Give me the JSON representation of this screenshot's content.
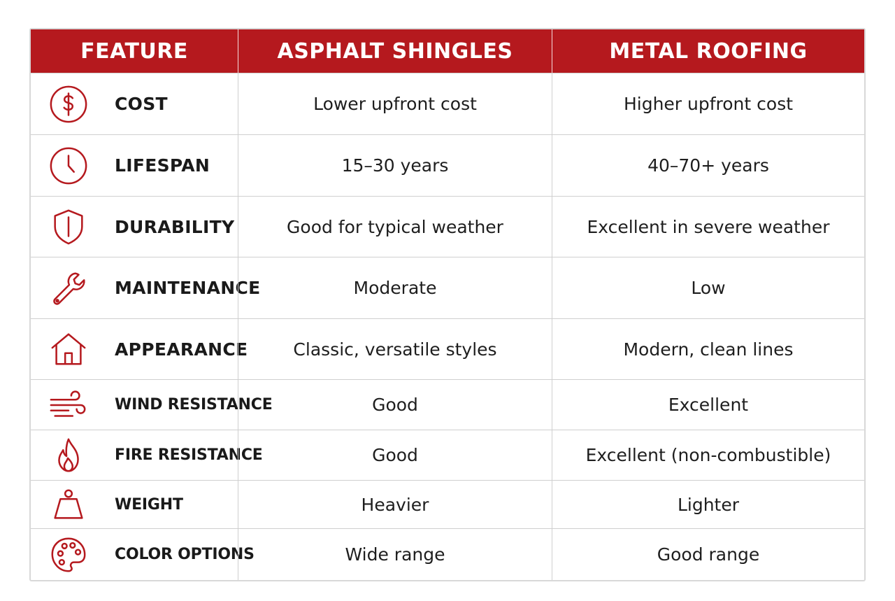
{
  "header": {
    "feature": "FEATURE",
    "asphalt": "ASPHALT SHINGLES",
    "metal": "METAL ROOFING"
  },
  "rows": [
    {
      "feature": "COST",
      "icon": "dollar-icon",
      "asphalt": "Lower upfront cost",
      "metal": "Higher upfront cost"
    },
    {
      "feature": "LIFESPAN",
      "icon": "clock-icon",
      "asphalt": "15–30 years",
      "metal": "40–70+ years"
    },
    {
      "feature": "DURABILITY",
      "icon": "shield-icon",
      "asphalt": "Good for typical weather",
      "metal": "Excellent in severe weather"
    },
    {
      "feature": "MAINTENANCE",
      "icon": "wrench-icon",
      "asphalt": "Moderate",
      "metal": "Low"
    },
    {
      "feature": "APPEARANCE",
      "icon": "house-icon",
      "asphalt": "Classic, versatile styles",
      "metal": "Modern, clean lines"
    },
    {
      "feature": "WIND RESISTANCE",
      "icon": "wind-icon",
      "asphalt": "Good",
      "metal": "Excellent"
    },
    {
      "feature": "FIRE RESISTANCE",
      "icon": "flame-icon",
      "asphalt": "Good",
      "metal": "Excellent (non-combustible)"
    },
    {
      "feature": "WEIGHT",
      "icon": "weight-icon",
      "asphalt": "Heavier",
      "metal": "Lighter"
    },
    {
      "feature": "COLOR OPTIONS",
      "icon": "palette-icon",
      "asphalt": "Wide range",
      "metal": "Good range"
    }
  ],
  "colors": {
    "header_bg": "#b5191e",
    "icon": "#b5191e",
    "grid": "#cfcfcf"
  }
}
